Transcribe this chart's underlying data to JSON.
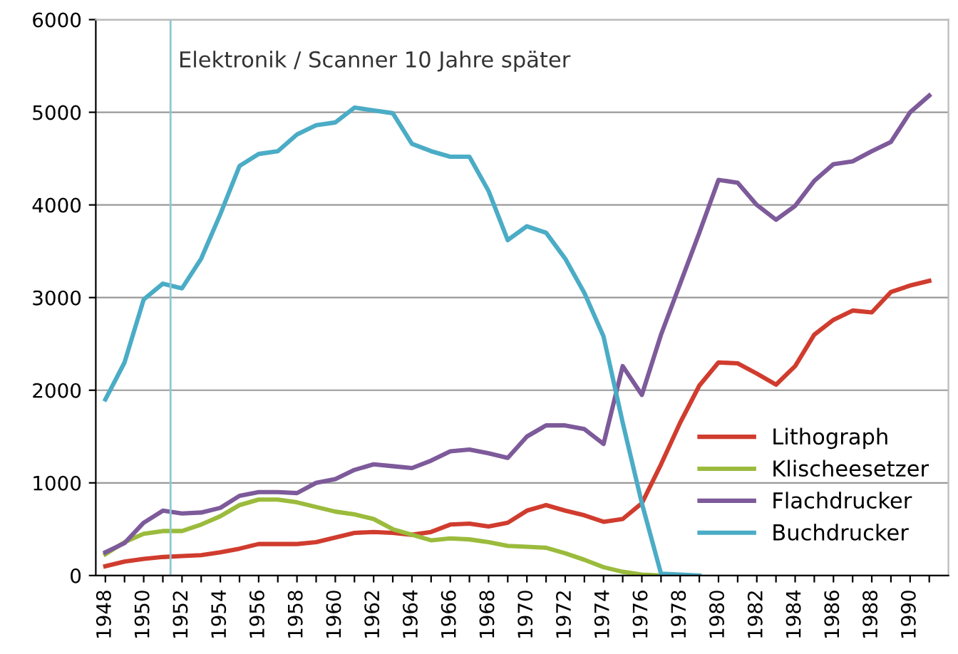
{
  "chart_data": {
    "type": "line",
    "x": [
      1948,
      1949,
      1950,
      1951,
      1952,
      1953,
      1954,
      1955,
      1956,
      1957,
      1958,
      1959,
      1960,
      1961,
      1962,
      1963,
      1964,
      1965,
      1966,
      1967,
      1968,
      1969,
      1970,
      1971,
      1972,
      1973,
      1974,
      1975,
      1976,
      1977,
      1978,
      1979,
      1980,
      1981,
      1982,
      1983,
      1984,
      1985,
      1986,
      1987,
      1988,
      1989,
      1990,
      1991
    ],
    "series": [
      {
        "name": "Lithograph",
        "color": "#d03c2e",
        "values": [
          100,
          150,
          180,
          200,
          210,
          220,
          250,
          290,
          340,
          340,
          340,
          360,
          410,
          460,
          470,
          460,
          440,
          470,
          550,
          560,
          530,
          570,
          700,
          760,
          700,
          650,
          580,
          610,
          780,
          1200,
          1650,
          2050,
          2300,
          2290,
          2180,
          2060,
          2260,
          2600,
          2760,
          2860,
          2840,
          3060,
          3130,
          3180
        ]
      },
      {
        "name": "Klischeesetzer",
        "color": "#9bbb3c",
        "values": [
          230,
          360,
          450,
          480,
          480,
          550,
          640,
          760,
          820,
          820,
          790,
          740,
          690,
          660,
          610,
          500,
          440,
          380,
          400,
          390,
          360,
          320,
          310,
          300,
          240,
          170,
          90,
          40,
          10,
          0,
          null,
          null,
          null,
          null,
          null,
          null,
          null,
          null,
          null,
          null,
          null,
          null,
          null,
          null
        ]
      },
      {
        "name": "Flachdrucker",
        "color": "#7d5a9a",
        "values": [
          250,
          350,
          570,
          700,
          670,
          680,
          730,
          860,
          900,
          900,
          890,
          1000,
          1040,
          1140,
          1200,
          1180,
          1160,
          1240,
          1340,
          1360,
          1320,
          1270,
          1500,
          1620,
          1620,
          1580,
          1420,
          2260,
          1950,
          2600,
          3150,
          3700,
          4270,
          4240,
          4000,
          3840,
          3990,
          4260,
          4440,
          4470,
          4580,
          4680,
          5000,
          5180
        ]
      },
      {
        "name": "Buchdrucker",
        "color": "#4bacc6",
        "values": [
          1900,
          2300,
          2980,
          3150,
          3100,
          3420,
          3900,
          4420,
          4550,
          4580,
          4760,
          4860,
          4890,
          5050,
          5020,
          4990,
          4660,
          4580,
          4520,
          4520,
          4150,
          3620,
          3770,
          3700,
          3420,
          3050,
          2580,
          1650,
          780,
          20,
          10,
          0,
          null,
          null,
          null,
          null,
          null,
          null,
          null,
          null,
          null,
          null,
          null,
          null
        ]
      }
    ],
    "xlim": [
      1947.5,
      1992
    ],
    "xticks": [
      1948,
      {
        "value": 1949,
        "label": null
      },
      1950,
      {
        "value": 1951,
        "label": null
      },
      1952,
      {
        "value": 1953,
        "label": null
      },
      1954,
      {
        "value": 1955,
        "label": null
      },
      1956,
      {
        "value": 1957,
        "label": null
      },
      1958,
      {
        "value": 1959,
        "label": null
      },
      1960,
      {
        "value": 1961,
        "label": null
      },
      1962,
      {
        "value": 1963,
        "label": null
      },
      1964,
      {
        "value": 1965,
        "label": null
      },
      1966,
      {
        "value": 1967,
        "label": null
      },
      1968,
      {
        "value": 1969,
        "label": null
      },
      1970,
      {
        "value": 1971,
        "label": null
      },
      1972,
      {
        "value": 1973,
        "label": null
      },
      1974,
      {
        "value": 1975,
        "label": null
      },
      1976,
      {
        "value": 1977,
        "label": null
      },
      1978,
      {
        "value": 1979,
        "label": null
      },
      1980,
      {
        "value": 1981,
        "label": null
      },
      1982,
      {
        "value": 1983,
        "label": null
      },
      1984,
      {
        "value": 1985,
        "label": null
      },
      1986,
      {
        "value": 1987,
        "label": null
      },
      1988,
      {
        "value": 1989,
        "label": null
      },
      1990,
      {
        "value": 1991,
        "label": null
      }
    ],
    "ylim": [
      0,
      6000
    ],
    "yticks": [
      0,
      1000,
      2000,
      3000,
      4000,
      5000,
      6000
    ],
    "ref_lines": [
      {
        "axis": "x",
        "value": 1951.4,
        "label": "Elektronik / Scanner 10 Jahre später",
        "color": "#8cc8d4"
      }
    ],
    "grid": "y",
    "legend": "bottom right",
    "marker": "none",
    "line_style": "solid"
  }
}
